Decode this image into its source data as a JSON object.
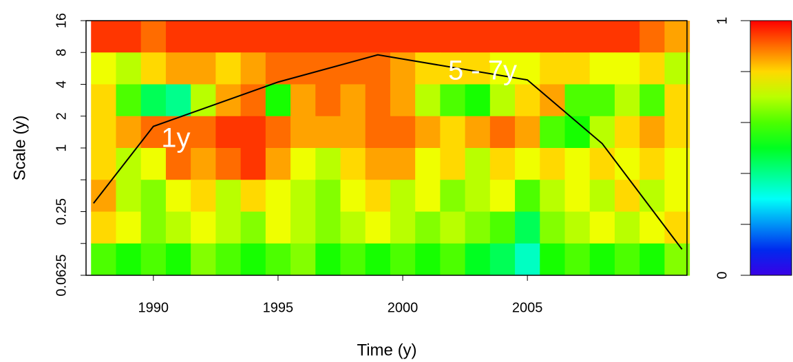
{
  "chart_data": {
    "type": "heatmap",
    "xlabel": "Time (y)",
    "ylabel": "Scale (y)",
    "xlim": [
      1987.3,
      2011.4
    ],
    "xticks": [
      1990,
      1995,
      2000,
      2005
    ],
    "ylim": [
      0.0625,
      16
    ],
    "ylog": true,
    "yticks": [
      16,
      8,
      4,
      2,
      1,
      {
        "value": 0.5,
        "label": null
      },
      0.25,
      {
        "value": 0.125,
        "label": null
      },
      0.0625
    ],
    "xbins": [
      1987.5,
      1988.5,
      1989.5,
      1990.5,
      1991.5,
      1992.5,
      1993.5,
      1994.5,
      1995.5,
      1996.5,
      1997.5,
      1998.5,
      1999.5,
      2000.5,
      2001.5,
      2002.5,
      2003.5,
      2004.5,
      2005.5,
      2006.5,
      2007.5,
      2008.5,
      2009.5,
      2010.5,
      2011.5
    ],
    "ybins": [
      16,
      8,
      4,
      2,
      1,
      0.5,
      0.25,
      0.125,
      0.0625
    ],
    "z": [
      [
        0.95,
        0.95,
        0.9,
        0.95,
        0.95,
        0.95,
        0.95,
        0.95,
        0.95,
        0.95,
        0.95,
        0.95,
        0.95,
        0.95,
        0.95,
        0.95,
        0.95,
        0.95,
        0.95,
        0.95,
        0.95,
        0.95,
        0.9,
        0.85
      ],
      [
        0.75,
        0.7,
        0.8,
        0.85,
        0.85,
        0.8,
        0.85,
        0.9,
        0.9,
        0.9,
        0.9,
        0.9,
        0.85,
        0.8,
        0.8,
        0.8,
        0.75,
        0.75,
        0.8,
        0.8,
        0.75,
        0.75,
        0.8,
        0.7
      ],
      [
        0.8,
        0.6,
        0.45,
        0.4,
        0.7,
        0.85,
        0.9,
        0.55,
        0.85,
        0.9,
        0.85,
        0.9,
        0.85,
        0.7,
        0.6,
        0.55,
        0.7,
        0.8,
        0.85,
        0.6,
        0.6,
        0.7,
        0.6,
        0.8
      ],
      [
        0.8,
        0.85,
        0.9,
        0.9,
        0.9,
        0.95,
        0.95,
        0.9,
        0.85,
        0.85,
        0.85,
        0.9,
        0.9,
        0.85,
        0.8,
        0.85,
        0.9,
        0.85,
        0.6,
        0.55,
        0.7,
        0.8,
        0.85,
        0.8
      ],
      [
        0.8,
        0.7,
        0.75,
        0.9,
        0.85,
        0.9,
        0.95,
        0.85,
        0.75,
        0.7,
        0.8,
        0.85,
        0.85,
        0.75,
        0.8,
        0.7,
        0.8,
        0.75,
        0.8,
        0.75,
        0.8,
        0.75,
        0.8,
        0.75
      ],
      [
        0.85,
        0.7,
        0.65,
        0.75,
        0.8,
        0.7,
        0.8,
        0.75,
        0.7,
        0.65,
        0.75,
        0.8,
        0.7,
        0.75,
        0.65,
        0.7,
        0.75,
        0.6,
        0.7,
        0.75,
        0.7,
        0.8,
        0.7,
        0.75
      ],
      [
        0.8,
        0.75,
        0.65,
        0.7,
        0.75,
        0.7,
        0.65,
        0.75,
        0.7,
        0.65,
        0.7,
        0.75,
        0.7,
        0.65,
        0.7,
        0.65,
        0.6,
        0.45,
        0.65,
        0.7,
        0.75,
        0.7,
        0.75,
        0.8
      ],
      [
        0.6,
        0.55,
        0.6,
        0.55,
        0.65,
        0.6,
        0.55,
        0.6,
        0.65,
        0.55,
        0.6,
        0.55,
        0.6,
        0.55,
        0.6,
        0.5,
        0.45,
        0.35,
        0.55,
        0.6,
        0.55,
        0.6,
        0.55,
        0.65
      ]
    ],
    "coi": {
      "x": [
        1987.6,
        1990,
        1995,
        1999,
        2005,
        2008,
        2011.2
      ],
      "y": [
        0.3,
        1.6,
        4.2,
        7.6,
        4.4,
        1.1,
        0.11
      ]
    },
    "annotations": [
      {
        "text": "1y",
        "x": 1990.9,
        "y": 1.2
      },
      {
        "text": "5 - 7y",
        "x": 2003.2,
        "y": 5.2
      }
    ],
    "colorbar": {
      "lim": [
        0,
        1
      ],
      "ticks": [
        0,
        {
          "value": 0.2,
          "label": null
        },
        {
          "value": 0.4,
          "label": null
        },
        {
          "value": 0.6,
          "label": null
        },
        {
          "value": 0.8,
          "label": null
        },
        1
      ]
    }
  }
}
